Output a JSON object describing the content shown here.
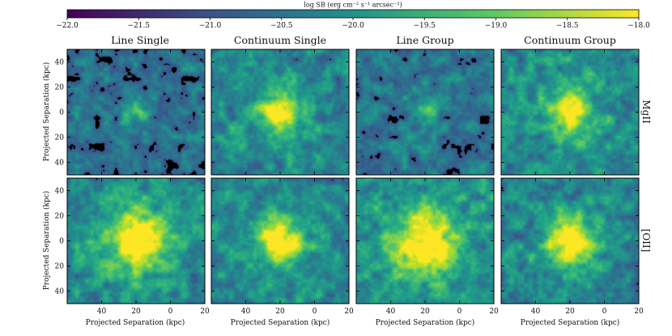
{
  "colorbar": {
    "label": "log SB (erg cm⁻² s⁻¹ arcsec⁻²)",
    "range": [
      -22.0,
      -18.0
    ],
    "ticks": [
      "−22.0",
      "−21.5",
      "−21.0",
      "−20.5",
      "−20.0",
      "−19.5",
      "−19.0",
      "−18.5",
      "−18.0"
    ],
    "colormap": "viridis",
    "colors": [
      "#440154",
      "#3b528b",
      "#21918c",
      "#5ec962",
      "#fde725"
    ]
  },
  "columns": [
    "Line Single",
    "Continuum Single",
    "Line Group",
    "Continuum Group"
  ],
  "rows": [
    "MgII",
    "[OII]"
  ],
  "axes": {
    "xlabel": "Projected Separation (kpc)",
    "ylabel": "Projected Separation (kpc)",
    "xticks": [
      "40",
      "20",
      "0",
      "20"
    ],
    "yticks": [
      "40",
      "20",
      "0",
      "20",
      "40"
    ]
  },
  "chart_data": {
    "type": "heatmap",
    "title": "",
    "colorbar_label": "log SB (erg cm⁻² s⁻¹ arcsec⁻²)",
    "colorbar_range": [
      -22.0,
      -18.0
    ],
    "colorbar_ticks": [
      -22.0,
      -21.5,
      -21.0,
      -20.5,
      -20.0,
      -19.5,
      -19.0,
      -18.5,
      -18.0
    ],
    "xlabel": "Projected Separation (kpc)",
    "ylabel": "Projected Separation (kpc)",
    "xlim": [
      -60,
      20
    ],
    "ylim": [
      -50,
      50
    ],
    "xtick_values": [
      -40,
      -20,
      0,
      20
    ],
    "ytick_values": [
      40,
      20,
      0,
      -20,
      -40
    ],
    "panels": [
      {
        "row": "MgII",
        "column": "Line Single",
        "peak_log_sb": -19.6,
        "core_radius_kpc": 2,
        "background_log_sb": -20.6
      },
      {
        "row": "MgII",
        "column": "Continuum Single",
        "peak_log_sb": -18.1,
        "core_radius_kpc": 6,
        "background_log_sb": -20.3
      },
      {
        "row": "MgII",
        "column": "Line Group",
        "peak_log_sb": -19.7,
        "core_radius_kpc": 2,
        "background_log_sb": -20.5
      },
      {
        "row": "MgII",
        "column": "Continuum Group",
        "peak_log_sb": -18.2,
        "core_radius_kpc": 6,
        "background_log_sb": -20.2
      },
      {
        "row": "[OII]",
        "column": "Line Single",
        "peak_log_sb": -18.0,
        "core_radius_kpc": 10,
        "background_log_sb": -20.3
      },
      {
        "row": "[OII]",
        "column": "Continuum Single",
        "peak_log_sb": -18.1,
        "core_radius_kpc": 7,
        "background_log_sb": -20.3
      },
      {
        "row": "[OII]",
        "column": "Line Group",
        "peak_log_sb": -18.0,
        "core_radius_kpc": 11,
        "background_log_sb": -20.2
      },
      {
        "row": "[OII]",
        "column": "Continuum Group",
        "peak_log_sb": -18.1,
        "core_radius_kpc": 7,
        "background_log_sb": -20.3
      }
    ]
  }
}
